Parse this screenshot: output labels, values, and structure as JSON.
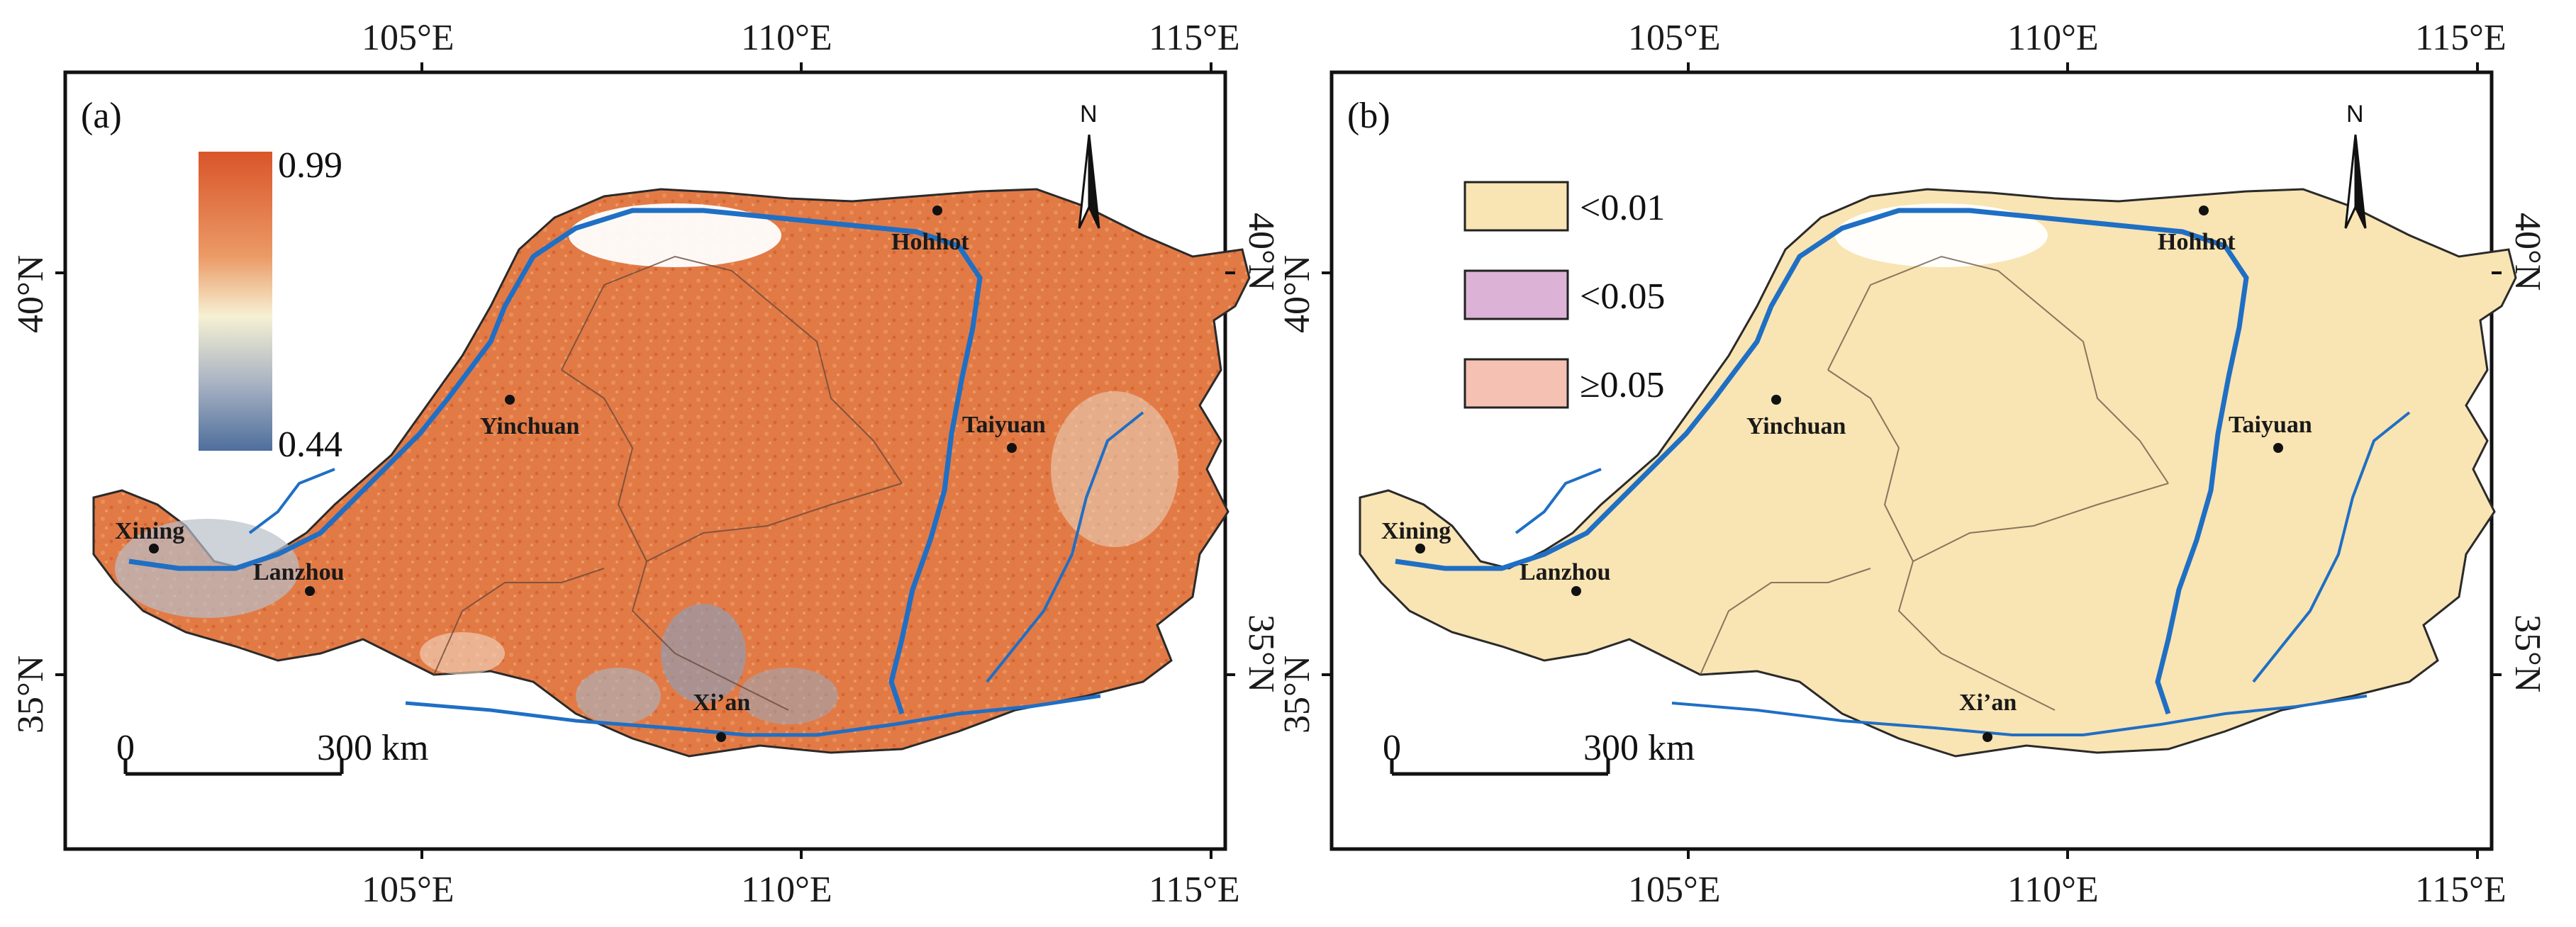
{
  "colors": {
    "gradient_high": "#d9552a",
    "gradient_mid": "#f6f1d3",
    "gradient_low": "#4e6e9c",
    "region_a_fill": "#e27a46",
    "region_b_fill": "#f9e4b3",
    "river": "#1f6fc4",
    "boundary": "#6a5a4a",
    "legend_lt001": "#f9e4b3",
    "legend_lt005": "#dcb3d6",
    "legend_ge005": "#f5c1b3"
  },
  "axes": {
    "top_labels": [
      "105°E",
      "110°E",
      "115°E"
    ],
    "bottom_labels": [
      "105°E",
      "110°E",
      "115°E"
    ],
    "left_labels": [
      "40°N",
      "35°N"
    ],
    "right_labels": [
      "40°N",
      "35°N"
    ]
  },
  "panel_a": {
    "label": "(a)",
    "colorbar_max": "0.99",
    "colorbar_min": "0.44",
    "scale_zero": "0",
    "scale_end": "300 km",
    "north": "N"
  },
  "panel_b": {
    "label": "(b)",
    "legend": [
      {
        "text": "<0.01"
      },
      {
        "text": "<0.05"
      },
      {
        "text": "≥0.05"
      }
    ],
    "scale_zero": "0",
    "scale_end": "300 km",
    "north": "N"
  },
  "cities": [
    {
      "name": "Hohhot"
    },
    {
      "name": "Yinchuan"
    },
    {
      "name": "Taiyuan"
    },
    {
      "name": "Xining"
    },
    {
      "name": "Lanzhou"
    },
    {
      "name": "Xi’an"
    }
  ]
}
